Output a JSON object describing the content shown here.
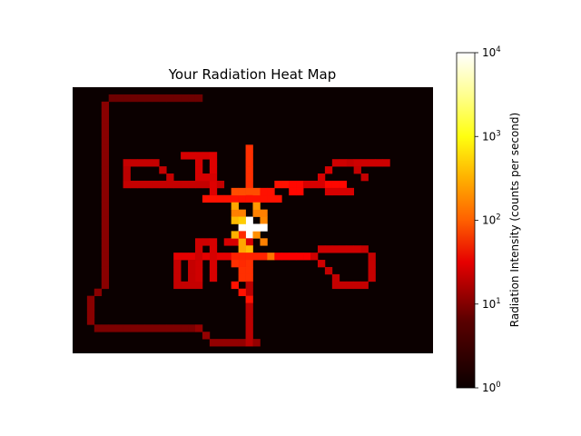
{
  "chart_data": {
    "type": "heatmap",
    "title": "Your Radiation Heat Map",
    "xlabel": "",
    "ylabel": "",
    "axes_visible": false,
    "grid_cols": 50,
    "grid_rows": 37,
    "colormap": "hot",
    "scale": "log",
    "value_range": [
      1,
      10000
    ],
    "background_value": 1,
    "colorbar": {
      "label": "Radiation Intensity (counts per second)",
      "ticks": [
        {
          "base": "10",
          "exp": "0",
          "value": 1
        },
        {
          "base": "10",
          "exp": "1",
          "value": 10
        },
        {
          "base": "10",
          "exp": "2",
          "value": 100
        },
        {
          "base": "10",
          "exp": "3",
          "value": 1000
        },
        {
          "base": "10",
          "exp": "4",
          "value": 10000
        }
      ]
    },
    "segments": [
      {
        "path": [
          [
            5,
            1
          ],
          [
            17,
            1
          ]
        ],
        "value": 4
      },
      {
        "path": [
          [
            4,
            2
          ],
          [
            4,
            27
          ]
        ],
        "value": 6
      },
      {
        "path": [
          [
            4,
            27
          ],
          [
            2,
            29
          ],
          [
            2,
            32
          ],
          [
            3,
            33
          ]
        ],
        "value": 6
      },
      {
        "path": [
          [
            3,
            33
          ],
          [
            17,
            33
          ]
        ],
        "value": 5
      },
      {
        "path": [
          [
            17,
            33
          ],
          [
            19,
            35
          ],
          [
            25,
            35
          ]
        ],
        "value": 7
      },
      {
        "path": [
          [
            24,
            13
          ],
          [
            24,
            35
          ]
        ],
        "value": 12
      },
      {
        "path": [
          [
            24,
            8
          ],
          [
            24,
            26
          ]
        ],
        "value": 60
      },
      {
        "path": [
          [
            21,
            21
          ],
          [
            24,
            21
          ]
        ],
        "value": 18
      },
      {
        "path": [
          [
            23,
            19
          ],
          [
            23,
            24
          ]
        ],
        "value": 55
      },
      {
        "path": [
          [
            22,
            17
          ],
          [
            26,
            17
          ]
        ],
        "value": 180
      },
      {
        "path": [
          [
            18,
            15
          ],
          [
            28,
            15
          ]
        ],
        "value": 40
      },
      {
        "path": [
          [
            22,
            14
          ],
          [
            27,
            14
          ]
        ],
        "value": 90
      },
      {
        "path": [
          [
            21,
            23
          ],
          [
            28,
            23
          ]
        ],
        "value": 50
      },
      {
        "path": [
          [
            7,
            13
          ],
          [
            20,
            13
          ]
        ],
        "value": 14
      },
      {
        "path": [
          [
            7,
            10
          ],
          [
            7,
            12
          ]
        ],
        "value": 12
      },
      {
        "path": [
          [
            7,
            10
          ],
          [
            11,
            10
          ]
        ],
        "value": 14
      },
      {
        "path": [
          [
            11,
            10
          ],
          [
            13,
            12
          ]
        ],
        "value": 14
      },
      {
        "path": [
          [
            15,
            9
          ],
          [
            19,
            9
          ]
        ],
        "value": 18
      },
      {
        "path": [
          [
            19,
            9
          ],
          [
            19,
            14
          ]
        ],
        "value": 20
      },
      {
        "path": [
          [
            17,
            10
          ],
          [
            17,
            12
          ]
        ],
        "value": 18
      },
      {
        "path": [
          [
            17,
            12
          ],
          [
            19,
            12
          ]
        ],
        "value": 18
      },
      {
        "path": [
          [
            29,
            13
          ],
          [
            37,
            13
          ]
        ],
        "value": 35
      },
      {
        "path": [
          [
            30,
            14
          ],
          [
            32,
            13
          ]
        ],
        "value": 35
      },
      {
        "path": [
          [
            34,
            12
          ],
          [
            36,
            10
          ]
        ],
        "value": 18
      },
      {
        "path": [
          [
            36,
            10
          ],
          [
            43,
            10
          ]
        ],
        "value": 16
      },
      {
        "path": [
          [
            38,
            10
          ],
          [
            40,
            12
          ]
        ],
        "value": 14
      },
      {
        "path": [
          [
            26,
            14
          ],
          [
            29,
            13
          ]
        ],
        "value": 40
      },
      {
        "path": [
          [
            32,
            13
          ],
          [
            38,
            14
          ]
        ],
        "value": 18
      },
      {
        "path": [
          [
            14,
            23
          ],
          [
            14,
            27
          ]
        ],
        "value": 14
      },
      {
        "path": [
          [
            14,
            27
          ],
          [
            17,
            27
          ]
        ],
        "value": 14
      },
      {
        "path": [
          [
            14,
            23
          ],
          [
            21,
            23
          ]
        ],
        "value": 22
      },
      {
        "path": [
          [
            17,
            21
          ],
          [
            17,
            26
          ]
        ],
        "value": 16
      },
      {
        "path": [
          [
            17,
            21
          ],
          [
            19,
            21
          ]
        ],
        "value": 16
      },
      {
        "path": [
          [
            19,
            21
          ],
          [
            19,
            26
          ]
        ],
        "value": 18
      },
      {
        "path": [
          [
            16,
            24
          ],
          [
            16,
            26
          ]
        ],
        "value": 14
      },
      {
        "path": [
          [
            28,
            23
          ],
          [
            33,
            23
          ]
        ],
        "value": 30
      },
      {
        "path": [
          [
            33,
            23
          ],
          [
            35,
            25
          ]
        ],
        "value": 16
      },
      {
        "path": [
          [
            35,
            25
          ],
          [
            37,
            27
          ]
        ],
        "value": 14
      },
      {
        "path": [
          [
            36,
            27
          ],
          [
            40,
            27
          ]
        ],
        "value": 14
      },
      {
        "path": [
          [
            41,
            23
          ],
          [
            41,
            26
          ]
        ],
        "value": 14
      },
      {
        "path": [
          [
            34,
            22
          ],
          [
            40,
            22
          ]
        ],
        "value": 16
      },
      {
        "path": [
          [
            40,
            22
          ],
          [
            41,
            23
          ]
        ],
        "value": 14
      },
      {
        "path": [
          [
            22,
            24
          ],
          [
            23,
            26
          ]
        ],
        "value": 60
      },
      {
        "path": [
          [
            22,
            27
          ],
          [
            24,
            29
          ]
        ],
        "value": 40
      }
    ],
    "hotspots": [
      {
        "x": 22,
        "y": 16,
        "value": 300
      },
      {
        "x": 22,
        "y": 18,
        "value": 400
      },
      {
        "x": 23,
        "y": 18,
        "value": 500
      },
      {
        "x": 22,
        "y": 20,
        "value": 350
      },
      {
        "x": 23,
        "y": 21,
        "value": 300
      },
      {
        "x": 25,
        "y": 16,
        "value": 250
      },
      {
        "x": 26,
        "y": 18,
        "value": 200
      },
      {
        "x": 25,
        "y": 20,
        "value": 220
      },
      {
        "x": 26,
        "y": 21,
        "value": 180
      },
      {
        "x": 24,
        "y": 18,
        "value": 10000
      },
      {
        "x": 24,
        "y": 19,
        "value": 10000
      },
      {
        "x": 24,
        "y": 20,
        "value": 10000
      },
      {
        "x": 23,
        "y": 19,
        "value": 10000
      },
      {
        "x": 25,
        "y": 19,
        "value": 10000
      },
      {
        "x": 26,
        "y": 19,
        "value": 10000
      },
      {
        "x": 24,
        "y": 16,
        "value": 1
      },
      {
        "x": 24,
        "y": 17,
        "value": 1
      },
      {
        "x": 25,
        "y": 22,
        "value": 1
      },
      {
        "x": 21,
        "y": 26,
        "value": 1
      },
      {
        "x": 22,
        "y": 28,
        "value": 1
      },
      {
        "x": 23,
        "y": 29,
        "value": 1
      },
      {
        "x": 23,
        "y": 22,
        "value": 300
      },
      {
        "x": 24,
        "y": 22,
        "value": 400
      },
      {
        "x": 27,
        "y": 23,
        "value": 150
      }
    ]
  }
}
